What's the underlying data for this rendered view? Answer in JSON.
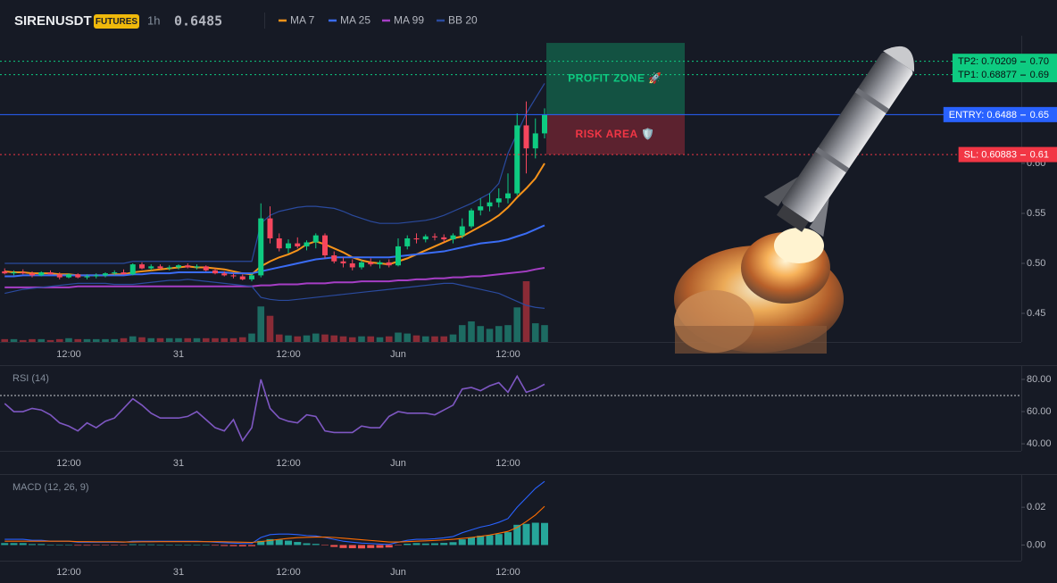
{
  "header": {
    "symbol": "SIRENUSDT",
    "badge": "FUTURES",
    "interval": "1h",
    "price": 0.6485,
    "price_color": "#0ecb81"
  },
  "chart_data": [
    {
      "type": "candlestick",
      "categories": [
        null,
        null,
        null,
        null,
        null,
        null,
        null,
        "12:00",
        null,
        null,
        null,
        null,
        null,
        null,
        null,
        null,
        null,
        null,
        null,
        "31",
        null,
        null,
        null,
        null,
        null,
        null,
        null,
        null,
        null,
        null,
        null,
        "12:00",
        null,
        null,
        null,
        null,
        null,
        null,
        null,
        null,
        null,
        null,
        null,
        "Jun",
        null,
        null,
        null,
        null,
        null,
        null,
        null,
        null,
        null,
        null,
        null,
        "12:00",
        null,
        null,
        null,
        null
      ],
      "open": [
        0.492,
        0.49,
        0.491,
        0.49,
        0.488,
        0.491,
        0.489,
        0.486,
        0.489,
        0.486,
        0.487,
        0.488,
        0.49,
        0.491,
        0.489,
        0.499,
        0.495,
        0.497,
        0.495,
        0.496,
        0.498,
        0.496,
        0.497,
        0.493,
        0.49,
        0.488,
        0.487,
        0.484,
        0.488,
        0.545,
        0.525,
        0.515,
        0.52,
        0.517,
        0.521,
        0.528,
        0.508,
        0.502,
        0.5,
        0.496,
        0.501,
        0.499,
        0.501,
        0.498,
        0.517,
        0.525,
        0.524,
        0.527,
        0.526,
        0.524,
        0.528,
        0.537,
        0.553,
        0.557,
        0.561,
        0.565,
        0.57,
        0.638,
        0.615,
        0.63
      ],
      "high": [
        0.495,
        0.493,
        0.494,
        0.492,
        0.492,
        0.493,
        0.491,
        0.49,
        0.49,
        0.489,
        0.49,
        0.491,
        0.493,
        0.494,
        0.5,
        0.501,
        0.499,
        0.499,
        0.498,
        0.499,
        0.5,
        0.499,
        0.498,
        0.495,
        0.492,
        0.49,
        0.489,
        0.49,
        0.56,
        0.557,
        0.53,
        0.524,
        0.526,
        0.523,
        0.53,
        0.53,
        0.512,
        0.506,
        0.504,
        0.503,
        0.505,
        0.503,
        0.504,
        0.525,
        0.528,
        0.53,
        0.529,
        0.53,
        0.529,
        0.53,
        0.545,
        0.555,
        0.565,
        0.57,
        0.575,
        0.59,
        0.65,
        0.662,
        0.645,
        0.655
      ],
      "low": [
        0.489,
        0.488,
        0.489,
        0.486,
        0.487,
        0.489,
        0.484,
        0.485,
        0.485,
        0.484,
        0.485,
        0.486,
        0.488,
        0.489,
        0.488,
        0.494,
        0.493,
        0.494,
        0.493,
        0.494,
        0.495,
        0.494,
        0.492,
        0.489,
        0.487,
        0.485,
        0.483,
        0.482,
        0.486,
        0.52,
        0.512,
        0.51,
        0.515,
        0.513,
        0.515,
        0.505,
        0.5,
        0.496,
        0.493,
        0.494,
        0.497,
        0.495,
        0.496,
        0.497,
        0.514,
        0.52,
        0.521,
        0.523,
        0.521,
        0.52,
        0.525,
        0.535,
        0.548,
        0.552,
        0.556,
        0.56,
        0.568,
        0.59,
        0.605,
        0.625
      ],
      "close": [
        0.49,
        0.491,
        0.49,
        0.488,
        0.491,
        0.489,
        0.486,
        0.489,
        0.486,
        0.487,
        0.488,
        0.49,
        0.491,
        0.489,
        0.499,
        0.495,
        0.497,
        0.495,
        0.496,
        0.498,
        0.496,
        0.497,
        0.493,
        0.49,
        0.488,
        0.487,
        0.484,
        0.488,
        0.545,
        0.525,
        0.515,
        0.52,
        0.517,
        0.521,
        0.528,
        0.508,
        0.502,
        0.5,
        0.496,
        0.501,
        0.499,
        0.501,
        0.498,
        0.517,
        0.525,
        0.524,
        0.527,
        0.526,
        0.524,
        0.528,
        0.537,
        0.553,
        0.557,
        0.561,
        0.565,
        0.57,
        0.638,
        0.615,
        0.63,
        0.6485
      ],
      "volume": [
        3,
        3,
        2,
        3,
        3,
        2,
        3,
        4,
        3,
        3,
        3,
        3,
        3,
        4,
        6,
        5,
        4,
        4,
        4,
        4,
        4,
        4,
        4,
        4,
        4,
        4,
        5,
        9,
        38,
        28,
        8,
        7,
        6,
        7,
        9,
        8,
        7,
        6,
        5,
        6,
        6,
        5,
        6,
        10,
        9,
        7,
        6,
        6,
        6,
        8,
        18,
        22,
        17,
        14,
        17,
        18,
        37,
        65,
        20,
        18
      ],
      "up_color": "#0ecb81",
      "down_color": "#f6465d",
      "volume_up_color": "#1d6b62",
      "volume_down_color": "#8a2b36",
      "ylim": [
        0.4214,
        0.7277
      ],
      "yticks": [
        0.45,
        {
          "value": 0.5,
          "label": "0.50"
        },
        0.55,
        {
          "value": 0.6,
          "label": "0.60"
        }
      ],
      "series": [
        {
          "name": "MA 7",
          "color": "#f7931a",
          "values": [
            0.492,
            0.491,
            0.491,
            0.49,
            0.49,
            0.49,
            0.489,
            0.489,
            0.488,
            0.488,
            0.488,
            0.488,
            0.489,
            0.489,
            0.491,
            0.492,
            0.493,
            0.494,
            0.495,
            0.496,
            0.497,
            0.496,
            0.496,
            0.495,
            0.494,
            0.492,
            0.49,
            0.489,
            0.497,
            0.502,
            0.506,
            0.509,
            0.513,
            0.519,
            0.522,
            0.519,
            0.515,
            0.511,
            0.506,
            0.503,
            0.501,
            0.5,
            0.499,
            0.502,
            0.505,
            0.509,
            0.513,
            0.517,
            0.521,
            0.525,
            0.527,
            0.532,
            0.537,
            0.542,
            0.548,
            0.556,
            0.566,
            0.575,
            0.585,
            0.6
          ]
        },
        {
          "name": "MA 25",
          "color": "#3a6cf4",
          "values": [
            0.487,
            0.487,
            0.488,
            0.488,
            0.488,
            0.488,
            0.488,
            0.488,
            0.488,
            0.488,
            0.488,
            0.488,
            0.488,
            0.488,
            0.489,
            0.489,
            0.49,
            0.49,
            0.49,
            0.491,
            0.491,
            0.491,
            0.491,
            0.491,
            0.491,
            0.49,
            0.49,
            0.49,
            0.492,
            0.494,
            0.496,
            0.498,
            0.5,
            0.502,
            0.504,
            0.505,
            0.506,
            0.506,
            0.506,
            0.506,
            0.506,
            0.506,
            0.506,
            0.507,
            0.508,
            0.509,
            0.51,
            0.511,
            0.512,
            0.514,
            0.516,
            0.518,
            0.52,
            0.521,
            0.522,
            0.524,
            0.527,
            0.53,
            0.534,
            0.538
          ]
        },
        {
          "name": "MA 99",
          "color": "#a63ec5",
          "values": [
            0.476,
            0.476,
            0.476,
            0.476,
            0.476,
            0.476,
            0.476,
            0.476,
            0.477,
            0.477,
            0.477,
            0.477,
            0.477,
            0.477,
            0.477,
            0.477,
            0.477,
            0.477,
            0.477,
            0.477,
            0.477,
            0.477,
            0.477,
            0.477,
            0.477,
            0.477,
            0.477,
            0.477,
            0.478,
            0.478,
            0.479,
            0.479,
            0.479,
            0.48,
            0.48,
            0.48,
            0.481,
            0.481,
            0.481,
            0.482,
            0.482,
            0.482,
            0.482,
            0.483,
            0.483,
            0.484,
            0.484,
            0.485,
            0.485,
            0.486,
            0.486,
            0.487,
            0.487,
            0.488,
            0.489,
            0.49,
            0.491,
            0.492,
            0.494,
            0.4955
          ]
        },
        {
          "name": "BB 20",
          "color": "#2a4a9e",
          "upper": [
            0.5,
            0.5,
            0.5,
            0.5,
            0.5,
            0.5,
            0.5,
            0.5,
            0.5,
            0.5,
            0.5,
            0.5,
            0.5,
            0.5,
            0.502,
            0.502,
            0.502,
            0.502,
            0.502,
            0.502,
            0.502,
            0.502,
            0.502,
            0.502,
            0.502,
            0.502,
            0.502,
            0.502,
            0.54,
            0.548,
            0.552,
            0.554,
            0.556,
            0.557,
            0.557,
            0.556,
            0.555,
            0.552,
            0.548,
            0.545,
            0.542,
            0.54,
            0.54,
            0.54,
            0.541,
            0.542,
            0.543,
            0.545,
            0.548,
            0.552,
            0.556,
            0.56,
            0.565,
            0.57,
            0.58,
            0.61,
            0.63,
            0.65,
            0.665,
            0.68
          ],
          "lower": [
            0.47,
            0.472,
            0.474,
            0.475,
            0.476,
            0.477,
            0.478,
            0.479,
            0.48,
            0.48,
            0.48,
            0.48,
            0.479,
            0.479,
            0.479,
            0.48,
            0.481,
            0.482,
            0.483,
            0.483,
            0.484,
            0.483,
            0.482,
            0.481,
            0.48,
            0.479,
            0.478,
            0.477,
            0.466,
            0.464,
            0.463,
            0.463,
            0.464,
            0.465,
            0.466,
            0.467,
            0.468,
            0.469,
            0.47,
            0.471,
            0.472,
            0.473,
            0.474,
            0.475,
            0.476,
            0.477,
            0.478,
            0.479,
            0.48,
            0.48,
            0.478,
            0.476,
            0.474,
            0.472,
            0.47,
            0.466,
            0.462,
            0.458,
            0.456,
            0.455
          ]
        }
      ],
      "levels": [
        {
          "label": "TP2: 0.70209",
          "axis_label": "0.70",
          "value": 0.70209,
          "color": "#0ecb81",
          "style": "dotted"
        },
        {
          "label": "TP1: 0.68877",
          "axis_label": "0.69",
          "value": 0.68877,
          "color": "#0ecb81",
          "style": "dotted"
        },
        {
          "label": "ENTRY: 0.6488",
          "axis_label": "0.65",
          "value": 0.6488,
          "color": "#2962ff",
          "style": "solid"
        },
        {
          "label": "SL: 0.60883",
          "axis_label": "0.61",
          "value": 0.60883,
          "color": "#f23645",
          "style": "dotted"
        }
      ],
      "zones": [
        {
          "label": "PROFIT ZONE 🚀",
          "from": 0.6488,
          "to": 0.7205,
          "color": "#0ecb81"
        },
        {
          "label": "RISK AREA 🛡️",
          "from": 0.60883,
          "to": 0.6488,
          "color": "#f23645"
        }
      ]
    },
    {
      "type": "line",
      "title": "RSI (14)",
      "categories": [
        null,
        null,
        null,
        null,
        null,
        null,
        null,
        "12:00",
        null,
        null,
        null,
        null,
        null,
        null,
        null,
        null,
        null,
        null,
        null,
        "31",
        null,
        null,
        null,
        null,
        null,
        null,
        null,
        null,
        null,
        null,
        null,
        "12:00",
        null,
        null,
        null,
        null,
        null,
        null,
        null,
        null,
        null,
        null,
        null,
        "Jun",
        null,
        null,
        null,
        null,
        null,
        null,
        null,
        null,
        null,
        null,
        null,
        "12:00",
        null,
        null,
        null,
        null
      ],
      "values": [
        65,
        60,
        60,
        62,
        61,
        58,
        53,
        51,
        48,
        53,
        50,
        54,
        56,
        62,
        68,
        64,
        59,
        56,
        56,
        56,
        57,
        60,
        55,
        50,
        48,
        55,
        42,
        50,
        80,
        62,
        56,
        54,
        53,
        58,
        57,
        48,
        47,
        47,
        47,
        51,
        50,
        50,
        57,
        60,
        59,
        59,
        59,
        58,
        61,
        64,
        74,
        75,
        73,
        76,
        78,
        72,
        82,
        72,
        74,
        77
      ],
      "color": "#7e57c2",
      "ref_line": 70,
      "ylim": [
        35.6,
        88.3
      ],
      "yticks": [
        {
          "value": 40,
          "label": "40.00"
        },
        {
          "value": 60,
          "label": "60.00"
        },
        {
          "value": 80,
          "label": "80.00"
        }
      ]
    },
    {
      "type": "macd",
      "title": "MACD (12, 26, 9)",
      "categories": [
        null,
        null,
        null,
        null,
        null,
        null,
        null,
        "12:00",
        null,
        null,
        null,
        null,
        null,
        null,
        null,
        null,
        null,
        null,
        null,
        "31",
        null,
        null,
        null,
        null,
        null,
        null,
        null,
        null,
        null,
        null,
        null,
        "12:00",
        null,
        null,
        null,
        null,
        null,
        null,
        null,
        null,
        null,
        null,
        null,
        "Jun",
        null,
        null,
        null,
        null,
        null,
        null,
        null,
        null,
        null,
        null,
        null,
        "12:00",
        null,
        null,
        null,
        null
      ],
      "series": [
        {
          "color": "#2962ff",
          "values": [
            0.003,
            0.003,
            0.003,
            0.0025,
            0.0025,
            0.002,
            0.002,
            0.002,
            0.0015,
            0.0015,
            0.0015,
            0.0015,
            0.0015,
            0.0015,
            0.002,
            0.002,
            0.002,
            0.002,
            0.002,
            0.002,
            0.002,
            0.002,
            0.0018,
            0.0015,
            0.0012,
            0.001,
            0.0008,
            0.0008,
            0.004,
            0.0055,
            0.0058,
            0.0058,
            0.0055,
            0.005,
            0.0048,
            0.004,
            0.003,
            0.002,
            0.0015,
            0.001,
            0.0008,
            0.0005,
            0.0003,
            0.0015,
            0.0025,
            0.003,
            0.003,
            0.0033,
            0.0038,
            0.0045,
            0.0065,
            0.008,
            0.0095,
            0.0105,
            0.012,
            0.014,
            0.02,
            0.025,
            0.03,
            0.0337
          ]
        },
        {
          "color": "#ff6d00",
          "values": [
            0.002,
            0.002,
            0.002,
            0.002,
            0.002,
            0.002,
            0.002,
            0.002,
            0.0018,
            0.0018,
            0.0017,
            0.0017,
            0.0017,
            0.0016,
            0.0016,
            0.0017,
            0.0017,
            0.0018,
            0.0018,
            0.0018,
            0.0018,
            0.0018,
            0.0018,
            0.0018,
            0.0017,
            0.0016,
            0.0015,
            0.0014,
            0.0018,
            0.0024,
            0.003,
            0.0035,
            0.0039,
            0.0041,
            0.0042,
            0.0042,
            0.004,
            0.0036,
            0.0032,
            0.0028,
            0.0024,
            0.002,
            0.0016,
            0.0016,
            0.0018,
            0.002,
            0.0022,
            0.0024,
            0.0027,
            0.003,
            0.0035,
            0.004,
            0.0046,
            0.0053,
            0.0062,
            0.0072,
            0.0093,
            0.0124,
            0.0159,
            0.0205
          ]
        }
      ],
      "histogram": {
        "up_color": "#26a69a",
        "down_color": "#ef5350",
        "values": [
          0.001,
          0.001,
          0.001,
          0.0005,
          0.0005,
          0.0001,
          0.0001,
          0.0001,
          -0.0003,
          -0.0003,
          -0.0002,
          -0.0002,
          -0.0002,
          -0.0001,
          0.0004,
          0.0003,
          0.0003,
          0.0002,
          0.0002,
          0.0002,
          0.0002,
          0.0002,
          0.0001,
          -0.0003,
          -0.0005,
          -0.0006,
          -0.0007,
          -0.0006,
          0.0022,
          0.0031,
          0.0028,
          0.0023,
          0.0016,
          0.0009,
          0.0006,
          -0.0002,
          -0.001,
          -0.0016,
          -0.0017,
          -0.0018,
          -0.0016,
          -0.0015,
          -0.0013,
          -0.0001,
          0.0007,
          0.001,
          0.0008,
          0.0009,
          0.0011,
          0.0015,
          0.003,
          0.004,
          0.0049,
          0.0052,
          0.0058,
          0.0068,
          0.0107,
          0.0112,
          0.0118,
          0.0117
        ]
      },
      "ylim": [
        -0.0083,
        0.0371
      ],
      "yticks": [
        {
          "value": 0,
          "label": "0.00"
        },
        0.02
      ]
    }
  ]
}
